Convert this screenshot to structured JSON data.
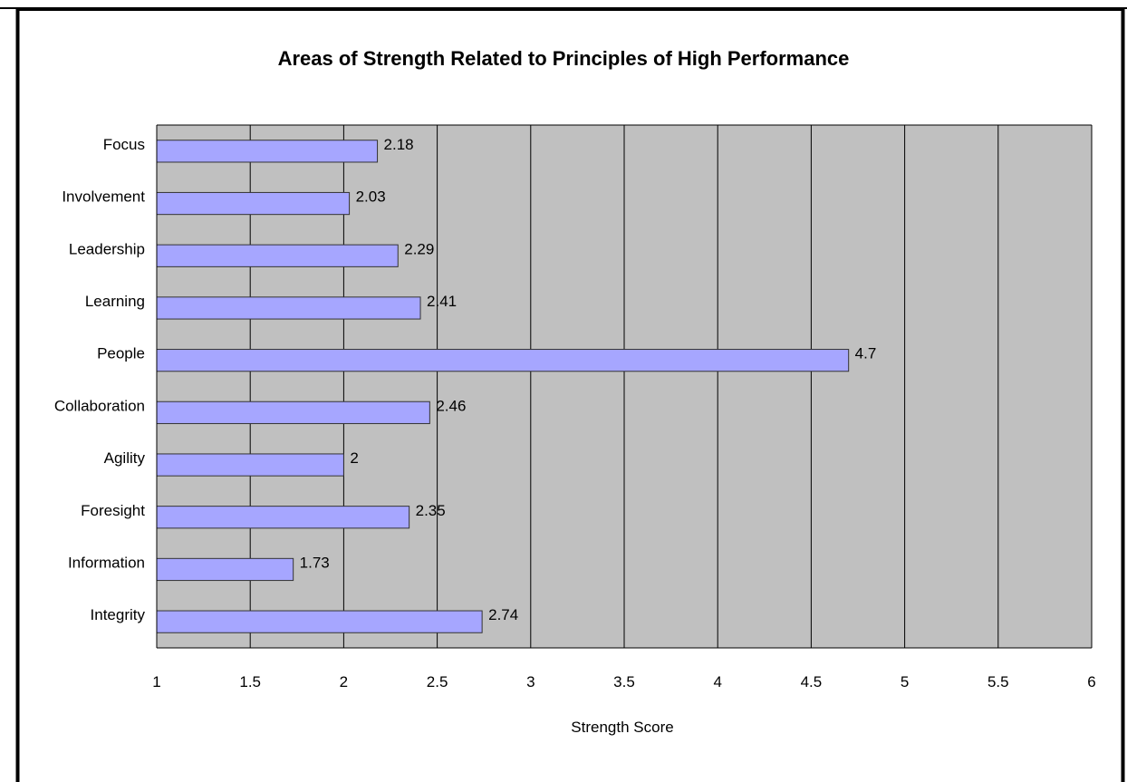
{
  "chart_data": {
    "type": "bar",
    "orientation": "horizontal",
    "title": "Areas of Strength Related to Principles of High Performance",
    "xlabel": "Strength Score",
    "ylabel": "",
    "categories": [
      "Focus",
      "Involvement",
      "Leadership",
      "Learning",
      "People",
      "Collaboration",
      "Agility",
      "Foresight",
      "Information",
      "Integrity"
    ],
    "values": [
      2.18,
      2.03,
      2.29,
      2.41,
      4.7,
      2.46,
      2,
      2.35,
      1.73,
      2.74
    ],
    "value_labels": [
      "2.18",
      "2.03",
      "2.29",
      "2.41",
      "4.7",
      "2.46",
      "2",
      "2.35",
      "1.73",
      "2.74"
    ],
    "xlim": [
      1,
      6
    ],
    "x_ticks": [
      "1",
      "1.5",
      "2",
      "2.5",
      "3",
      "3.5",
      "4",
      "4.5",
      "5",
      "5.5",
      "6"
    ],
    "grid": "vertical",
    "legend": "none",
    "colors": {
      "bar_fill": "#a6a6ff",
      "bar_stroke": "#333333",
      "plot_background": "#c0c0c0",
      "grid": "#000000"
    }
  }
}
